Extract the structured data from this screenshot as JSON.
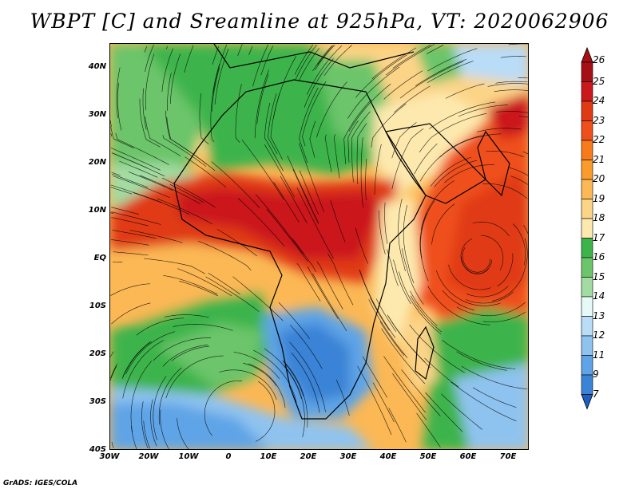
{
  "title": "WBPT [C] and Sreamline at 925hPa, VT: 2020062906",
  "footer": "GrADS: IGES/COLA",
  "map": {
    "lat_labels": [
      "40N",
      "30N",
      "20N",
      "10N",
      "EQ",
      "10S",
      "20S",
      "30S",
      "40S"
    ],
    "lon_labels": [
      "30W",
      "20W",
      "10W",
      "0",
      "10E",
      "20E",
      "30E",
      "40E",
      "50E",
      "60E",
      "70E"
    ]
  },
  "colorbar": {
    "labels": [
      "26",
      "25",
      "24",
      "23",
      "22",
      "21",
      "20",
      "19",
      "18",
      "17",
      "16",
      "15",
      "14",
      "13",
      "12",
      "11",
      "9",
      "7"
    ],
    "colors": [
      "#a50f15",
      "#cb181d",
      "#e03a15",
      "#ef4f1a",
      "#f77b1b",
      "#fa9b2c",
      "#fbb855",
      "#fcd487",
      "#fde9ae",
      "#3cb44b",
      "#6cc56b",
      "#a2dca2",
      "#e6f9f9",
      "#b9dcf7",
      "#8fc3ef",
      "#5fa4e6",
      "#3b83d6",
      "#1c5fc2"
    ]
  },
  "icons": {
    "contour": "contour-fill-map",
    "streamlines": "streamline-arrows"
  }
}
